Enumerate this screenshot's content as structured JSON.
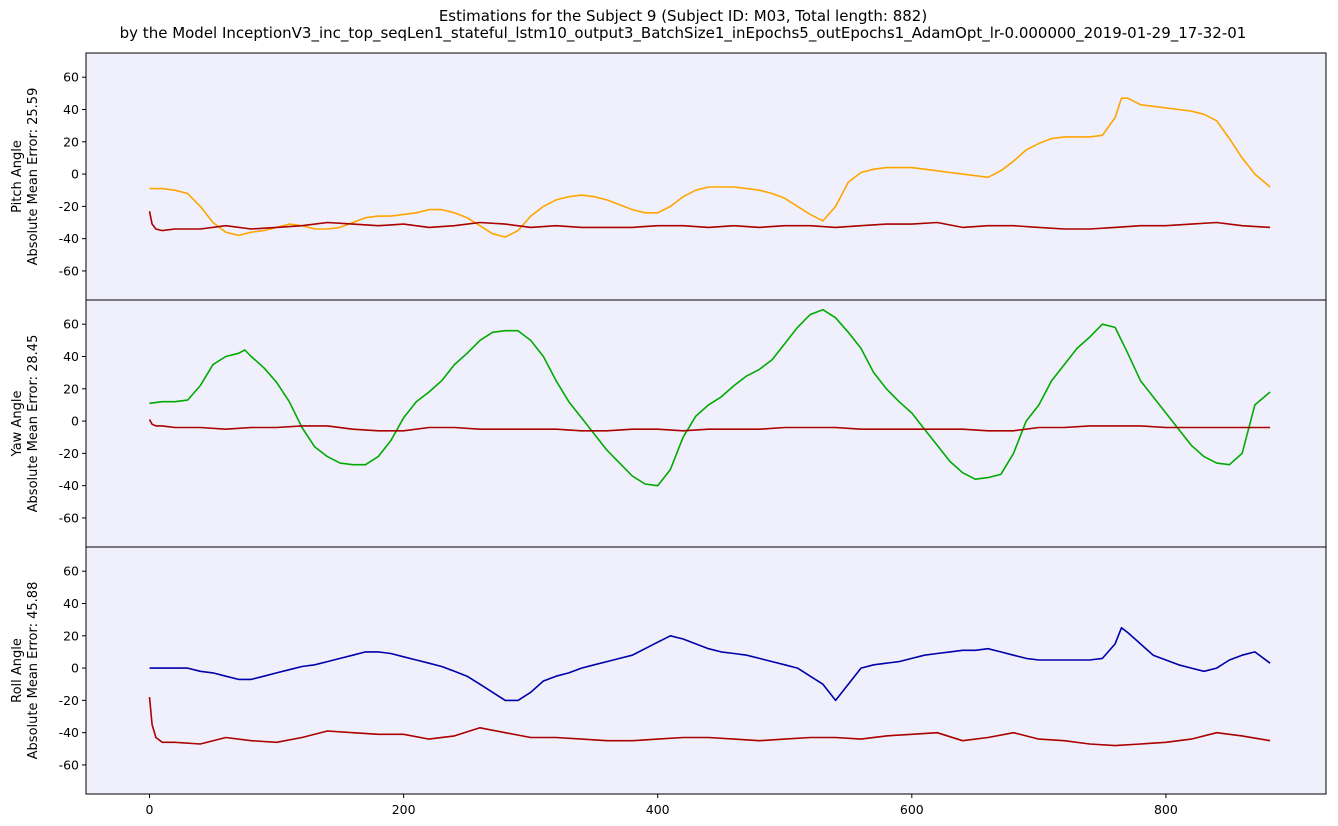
{
  "chart_data": {
    "type": "line",
    "title": "Estimations for the Subject 9 (Subject ID: M03, Total length: 882)",
    "subtitle": "by the Model InceptionV3_inc_top_seqLen1_stateful_lstm10_output3_BatchSize1_inEpochs5_outEpochs1_AdamOpt_lr-0.000000_2019-01-29_17-32-01",
    "xlim": [
      -50,
      926
    ],
    "xticks": [
      0,
      200,
      400,
      600,
      800
    ],
    "grid": false,
    "legend": "none",
    "background": "#f0f0fc",
    "panels": [
      {
        "ylabel_line1": "Pitch Angle",
        "ylabel_line2": "Absolute Mean Error: 25.59",
        "ylim": [
          -78,
          75
        ],
        "yticks": [
          60,
          40,
          20,
          0,
          -20,
          -40,
          -60
        ],
        "series": [
          {
            "color": "#ffa500",
            "x": [
              0,
              10,
              20,
              30,
              40,
              50,
              60,
              70,
              80,
              90,
              100,
              110,
              120,
              130,
              140,
              150,
              160,
              170,
              180,
              190,
              200,
              210,
              220,
              230,
              240,
              250,
              260,
              270,
              280,
              290,
              300,
              310,
              320,
              330,
              340,
              350,
              360,
              370,
              380,
              390,
              400,
              410,
              420,
              430,
              440,
              450,
              460,
              470,
              480,
              490,
              500,
              510,
              520,
              530,
              540,
              550,
              560,
              570,
              580,
              590,
              600,
              610,
              620,
              630,
              640,
              650,
              660,
              670,
              680,
              690,
              700,
              710,
              720,
              730,
              740,
              750,
              760,
              765,
              770,
              780,
              790,
              800,
              810,
              820,
              830,
              840,
              850,
              860,
              870,
              882
            ],
            "values": [
              -9,
              -9,
              -10,
              -12,
              -20,
              -30,
              -36,
              -38,
              -36,
              -35,
              -33,
              -31,
              -32,
              -34,
              -34,
              -33,
              -30,
              -27,
              -26,
              -26,
              -25,
              -24,
              -22,
              -22,
              -24,
              -27,
              -32,
              -37,
              -39,
              -35,
              -26,
              -20,
              -16,
              -14,
              -13,
              -14,
              -16,
              -19,
              -22,
              -24,
              -24,
              -20,
              -14,
              -10,
              -8,
              -8,
              -8,
              -9,
              -10,
              -12,
              -15,
              -20,
              -25,
              -29,
              -20,
              -5,
              1,
              3,
              4,
              4,
              4,
              3,
              2,
              1,
              0,
              -1,
              -2,
              2,
              8,
              15,
              19,
              22,
              23,
              23,
              23,
              24,
              35,
              47,
              47,
              43,
              42,
              41,
              40,
              39,
              37,
              33,
              22,
              10,
              0,
              -8
            ]
          },
          {
            "color": "#aa0000",
            "x": [
              0,
              2,
              5,
              10,
              20,
              40,
              60,
              80,
              100,
              120,
              140,
              160,
              180,
              200,
              220,
              240,
              260,
              280,
              300,
              320,
              340,
              360,
              380,
              400,
              420,
              440,
              460,
              480,
              500,
              520,
              540,
              560,
              580,
              600,
              620,
              640,
              660,
              680,
              700,
              720,
              740,
              760,
              780,
              800,
              820,
              840,
              860,
              882
            ],
            "values": [
              -23,
              -31,
              -34,
              -35,
              -34,
              -34,
              -32,
              -34,
              -33,
              -32,
              -30,
              -31,
              -32,
              -31,
              -33,
              -32,
              -30,
              -31,
              -33,
              -32,
              -33,
              -33,
              -33,
              -32,
              -32,
              -33,
              -32,
              -33,
              -32,
              -32,
              -33,
              -32,
              -31,
              -31,
              -30,
              -33,
              -32,
              -32,
              -33,
              -34,
              -34,
              -33,
              -32,
              -32,
              -31,
              -30,
              -32,
              -33
            ]
          }
        ]
      },
      {
        "ylabel_line1": "Yaw Angle",
        "ylabel_line2": "Absolute Mean Error: 28.45",
        "ylim": [
          -78,
          75
        ],
        "yticks": [
          60,
          40,
          20,
          0,
          -20,
          -40,
          -60
        ],
        "series": [
          {
            "color": "#00aa00",
            "x": [
              0,
              10,
              20,
              30,
              40,
              50,
              60,
              70,
              75,
              80,
              90,
              100,
              110,
              120,
              130,
              140,
              150,
              160,
              170,
              180,
              190,
              200,
              210,
              220,
              230,
              240,
              250,
              260,
              270,
              280,
              290,
              300,
              310,
              320,
              330,
              340,
              350,
              360,
              370,
              380,
              390,
              400,
              410,
              420,
              430,
              440,
              450,
              460,
              470,
              480,
              490,
              500,
              510,
              520,
              530,
              540,
              550,
              560,
              570,
              580,
              590,
              600,
              610,
              620,
              630,
              640,
              650,
              660,
              670,
              680,
              690,
              700,
              710,
              720,
              730,
              740,
              750,
              760,
              770,
              780,
              790,
              800,
              810,
              820,
              830,
              840,
              850,
              860,
              870,
              882
            ],
            "values": [
              11,
              12,
              12,
              13,
              22,
              35,
              40,
              42,
              44,
              40,
              33,
              24,
              12,
              -4,
              -16,
              -22,
              -26,
              -27,
              -27,
              -22,
              -12,
              2,
              12,
              18,
              25,
              35,
              42,
              50,
              55,
              56,
              56,
              50,
              40,
              25,
              12,
              2,
              -8,
              -18,
              -26,
              -34,
              -39,
              -40,
              -30,
              -10,
              3,
              10,
              15,
              22,
              28,
              32,
              38,
              48,
              58,
              66,
              69,
              64,
              55,
              45,
              30,
              20,
              12,
              5,
              -5,
              -15,
              -25,
              -32,
              -36,
              -35,
              -33,
              -20,
              0,
              10,
              25,
              35,
              45,
              52,
              60,
              58,
              42,
              25,
              15,
              5,
              -5,
              -15,
              -22,
              -26,
              -27,
              -20,
              10,
              18
            ]
          },
          {
            "color": "#aa0000",
            "x": [
              0,
              2,
              5,
              10,
              20,
              40,
              60,
              80,
              100,
              120,
              140,
              160,
              180,
              200,
              220,
              240,
              260,
              280,
              300,
              320,
              340,
              360,
              380,
              400,
              420,
              440,
              460,
              480,
              500,
              520,
              540,
              560,
              580,
              600,
              620,
              640,
              660,
              680,
              700,
              720,
              740,
              760,
              780,
              800,
              820,
              840,
              860,
              882
            ],
            "values": [
              1,
              -2,
              -3,
              -3,
              -4,
              -4,
              -5,
              -4,
              -4,
              -3,
              -3,
              -5,
              -6,
              -6,
              -4,
              -4,
              -5,
              -5,
              -5,
              -5,
              -6,
              -6,
              -5,
              -5,
              -6,
              -5,
              -5,
              -5,
              -4,
              -4,
              -4,
              -5,
              -5,
              -5,
              -5,
              -5,
              -6,
              -6,
              -4,
              -4,
              -3,
              -3,
              -3,
              -4,
              -4,
              -4,
              -4,
              -4
            ]
          }
        ]
      },
      {
        "ylabel_line1": "Roll Angle",
        "ylabel_line2": "Absolute Mean Error: 45.88",
        "ylim": [
          -78,
          75
        ],
        "yticks": [
          60,
          40,
          20,
          0,
          -20,
          -40,
          -60
        ],
        "series": [
          {
            "color": "#0000aa",
            "x": [
              0,
              10,
              20,
              30,
              40,
              50,
              60,
              70,
              80,
              90,
              100,
              110,
              120,
              130,
              140,
              150,
              160,
              170,
              180,
              190,
              200,
              210,
              220,
              230,
              240,
              250,
              260,
              270,
              280,
              290,
              300,
              310,
              320,
              330,
              340,
              350,
              360,
              370,
              380,
              390,
              400,
              410,
              420,
              430,
              440,
              450,
              460,
              470,
              480,
              490,
              500,
              510,
              520,
              530,
              540,
              550,
              560,
              570,
              580,
              590,
              600,
              610,
              620,
              630,
              640,
              650,
              660,
              670,
              680,
              690,
              700,
              710,
              720,
              730,
              740,
              750,
              760,
              765,
              770,
              780,
              790,
              800,
              810,
              820,
              830,
              840,
              850,
              860,
              870,
              882
            ],
            "values": [
              0,
              0,
              0,
              0,
              -2,
              -3,
              -5,
              -7,
              -7,
              -5,
              -3,
              -1,
              1,
              2,
              4,
              6,
              8,
              10,
              10,
              9,
              7,
              5,
              3,
              1,
              -2,
              -5,
              -10,
              -15,
              -20,
              -20,
              -15,
              -8,
              -5,
              -3,
              0,
              2,
              4,
              6,
              8,
              12,
              16,
              20,
              18,
              15,
              12,
              10,
              9,
              8,
              6,
              4,
              2,
              0,
              -5,
              -10,
              -20,
              -10,
              0,
              2,
              3,
              4,
              6,
              8,
              9,
              10,
              11,
              11,
              12,
              10,
              8,
              6,
              5,
              5,
              5,
              5,
              5,
              6,
              15,
              25,
              22,
              15,
              8,
              5,
              2,
              0,
              -2,
              0,
              5,
              8,
              10,
              3
            ]
          },
          {
            "color": "#aa0000",
            "x": [
              0,
              2,
              5,
              10,
              20,
              40,
              60,
              80,
              100,
              120,
              140,
              160,
              180,
              200,
              220,
              240,
              260,
              280,
              300,
              320,
              340,
              360,
              380,
              400,
              420,
              440,
              460,
              480,
              500,
              520,
              540,
              560,
              580,
              600,
              620,
              640,
              660,
              680,
              700,
              720,
              740,
              760,
              780,
              800,
              820,
              840,
              860,
              882
            ],
            "values": [
              -18,
              -35,
              -43,
              -46,
              -46,
              -47,
              -43,
              -45,
              -46,
              -43,
              -39,
              -40,
              -41,
              -41,
              -44,
              -42,
              -37,
              -40,
              -43,
              -43,
              -44,
              -45,
              -45,
              -44,
              -43,
              -43,
              -44,
              -45,
              -44,
              -43,
              -43,
              -44,
              -42,
              -41,
              -40,
              -45,
              -43,
              -40,
              -44,
              -45,
              -47,
              -48,
              -47,
              -46,
              -44,
              -40,
              -42,
              -45
            ]
          }
        ]
      }
    ]
  }
}
